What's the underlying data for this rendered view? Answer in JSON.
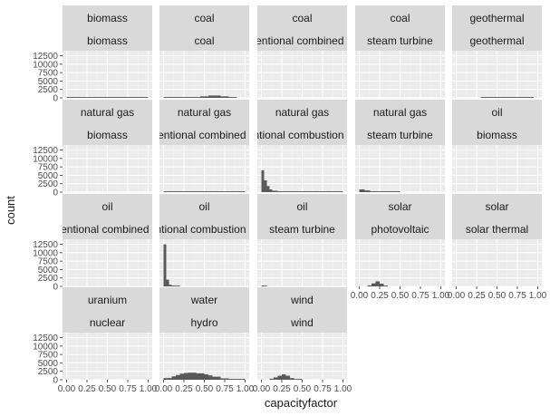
{
  "chart_data": {
    "type": "bar",
    "subtype": "faceted-histogram",
    "title": "",
    "xlabel": "capacityfactor",
    "ylabel": "count",
    "xlim": [
      -0.05,
      1.05
    ],
    "ylim": [
      0,
      14000
    ],
    "x_ticks": [
      0.0,
      0.25,
      0.5,
      0.75,
      1.0
    ],
    "x_tick_labels": [
      "0.00",
      "0.25",
      "0.50",
      "0.75",
      "1.00"
    ],
    "y_ticks": [
      0,
      2500,
      5000,
      7500,
      10000,
      12500
    ],
    "y_tick_labels": [
      "0",
      "2500",
      "5000",
      "7500",
      "10000",
      "12500"
    ],
    "bin_width": 0.0333,
    "grid": true,
    "colors": {
      "panel_bg": "#ebebeb",
      "strip_bg": "#d9d9d9",
      "grid_major": "#ffffff",
      "grid_minor": "#f2f2f2",
      "bar": "#595959",
      "text": "#1a1a1a",
      "tick_text": "#4d4d4d"
    },
    "panels": [
      {
        "strip": [
          "biomass",
          "biomass"
        ],
        "bins": [
          [
            0.0,
            1.0,
            60
          ]
        ]
      },
      {
        "strip": [
          "coal",
          "coal"
        ],
        "bins": [
          [
            0.0,
            0.3,
            100
          ],
          [
            0.3,
            0.45,
            250
          ],
          [
            0.45,
            0.55,
            450
          ],
          [
            0.55,
            0.7,
            700
          ],
          [
            0.7,
            0.8,
            450
          ],
          [
            0.8,
            0.9,
            150
          ]
        ]
      },
      {
        "strip": [
          "coal",
          "conventional combined cycle"
        ],
        "bins": []
      },
      {
        "strip": [
          "coal",
          "steam turbine"
        ],
        "bins": []
      },
      {
        "strip": [
          "geothermal",
          "geothermal"
        ],
        "bins": [
          [
            0.3,
            0.95,
            50
          ]
        ]
      },
      {
        "strip": [
          "natural gas",
          "biomass"
        ],
        "bins": []
      },
      {
        "strip": [
          "natural gas",
          "conventional combined cycle"
        ],
        "bins": [
          [
            0.0,
            1.0,
            70
          ]
        ]
      },
      {
        "strip": [
          "natural gas",
          "conventional combustion turbine"
        ],
        "bins": [
          [
            0.0,
            0.033,
            6500
          ],
          [
            0.033,
            0.067,
            3500
          ],
          [
            0.067,
            0.1,
            1800
          ],
          [
            0.1,
            0.133,
            800
          ],
          [
            0.133,
            0.2,
            400
          ],
          [
            0.2,
            0.3,
            200
          ],
          [
            0.3,
            0.6,
            100
          ],
          [
            0.6,
            1.0,
            40
          ]
        ]
      },
      {
        "strip": [
          "natural gas",
          "steam turbine"
        ],
        "bins": [
          [
            0.0,
            0.067,
            800
          ],
          [
            0.067,
            0.133,
            500
          ],
          [
            0.133,
            0.2,
            250
          ],
          [
            0.2,
            0.5,
            100
          ]
        ]
      },
      {
        "strip": [
          "oil",
          "biomass"
        ],
        "bins": []
      },
      {
        "strip": [
          "oil",
          "conventional combined cycle"
        ],
        "bins": []
      },
      {
        "strip": [
          "oil",
          "conventional combustion turbine"
        ],
        "bins": [
          [
            0.0,
            0.033,
            12500
          ],
          [
            0.033,
            0.067,
            2000
          ],
          [
            0.067,
            0.1,
            500
          ],
          [
            0.1,
            0.2,
            150
          ]
        ]
      },
      {
        "strip": [
          "oil",
          "steam turbine"
        ],
        "bins": [
          [
            0.0,
            0.067,
            150
          ]
        ]
      },
      {
        "strip": [
          "solar",
          "photovoltaic"
        ],
        "bins": [
          [
            0.1,
            0.15,
            300
          ],
          [
            0.15,
            0.2,
            900
          ],
          [
            0.2,
            0.25,
            1500
          ],
          [
            0.25,
            0.3,
            800
          ],
          [
            0.3,
            0.35,
            200
          ]
        ]
      },
      {
        "strip": [
          "solar",
          "solar thermal"
        ],
        "bins": []
      },
      {
        "strip": [
          "uranium",
          "nuclear"
        ],
        "bins": []
      },
      {
        "strip": [
          "water",
          "hydro"
        ],
        "bins": [
          [
            0.0,
            0.1,
            500
          ],
          [
            0.1,
            0.15,
            1000
          ],
          [
            0.15,
            0.2,
            1400
          ],
          [
            0.2,
            0.25,
            1800
          ],
          [
            0.25,
            0.3,
            2000
          ],
          [
            0.3,
            0.4,
            2100
          ],
          [
            0.4,
            0.5,
            1900
          ],
          [
            0.5,
            0.55,
            1600
          ],
          [
            0.55,
            0.6,
            1300
          ],
          [
            0.6,
            0.7,
            900
          ],
          [
            0.7,
            0.8,
            400
          ],
          [
            0.8,
            1.0,
            100
          ]
        ]
      },
      {
        "strip": [
          "wind",
          "wind"
        ],
        "bins": [
          [
            0.1,
            0.15,
            300
          ],
          [
            0.15,
            0.2,
            700
          ],
          [
            0.2,
            0.25,
            1200
          ],
          [
            0.25,
            0.3,
            1600
          ],
          [
            0.3,
            0.35,
            1200
          ],
          [
            0.35,
            0.4,
            500
          ],
          [
            0.4,
            0.5,
            150
          ]
        ]
      }
    ]
  }
}
